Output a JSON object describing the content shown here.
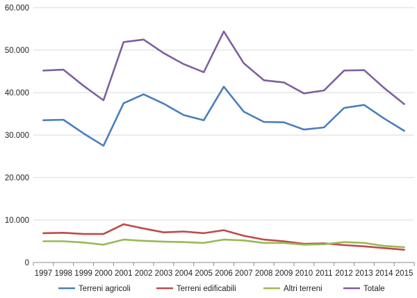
{
  "chart_data": {
    "type": "line",
    "title": "",
    "xlabel": "",
    "ylabel": "",
    "ylim": [
      0,
      60000
    ],
    "y_ticks": [
      0,
      10000,
      20000,
      30000,
      40000,
      50000,
      60000
    ],
    "y_tick_labels": [
      "0",
      "10.000",
      "20.000",
      "30.000",
      "40.000",
      "50.000",
      "60.000"
    ],
    "grid": "horizontal",
    "legend_position": "bottom",
    "categories": [
      "1997",
      "1998",
      "1999",
      "2000",
      "2001",
      "2002",
      "2003",
      "2004",
      "2005",
      "2006",
      "2007",
      "2008",
      "2009",
      "2010",
      "2011",
      "2012",
      "2013",
      "2014",
      "2015"
    ],
    "series": [
      {
        "name": "Terreni agricoli",
        "color": "#4a7ebb",
        "values": [
          33500,
          33600,
          30400,
          27500,
          37500,
          39600,
          37400,
          34700,
          33500,
          41400,
          35500,
          33100,
          33000,
          31300,
          31800,
          36400,
          37100,
          33900,
          31000
        ]
      },
      {
        "name": "Terreni edificabili",
        "color": "#be4b48",
        "values": [
          6900,
          7000,
          6700,
          6700,
          9000,
          8000,
          7100,
          7300,
          6900,
          7600,
          6300,
          5400,
          5000,
          4400,
          4500,
          4100,
          3800,
          3400,
          3000
        ]
      },
      {
        "name": "Altri terreni",
        "color": "#98b954",
        "values": [
          5000,
          5000,
          4700,
          4200,
          5400,
          5100,
          4900,
          4800,
          4600,
          5400,
          5200,
          4600,
          4600,
          4200,
          4300,
          4800,
          4600,
          3900,
          3600
        ]
      },
      {
        "name": "Totale",
        "color": "#7d60a0",
        "values": [
          45200,
          45400,
          41600,
          38200,
          51900,
          52500,
          49300,
          46700,
          44800,
          54400,
          46900,
          42900,
          42400,
          39800,
          40500,
          45200,
          45300,
          41100,
          37300
        ]
      }
    ]
  },
  "colors": {
    "grid": "#d9d9d9",
    "axis": "#8c8c8c",
    "background": "#ffffff"
  }
}
